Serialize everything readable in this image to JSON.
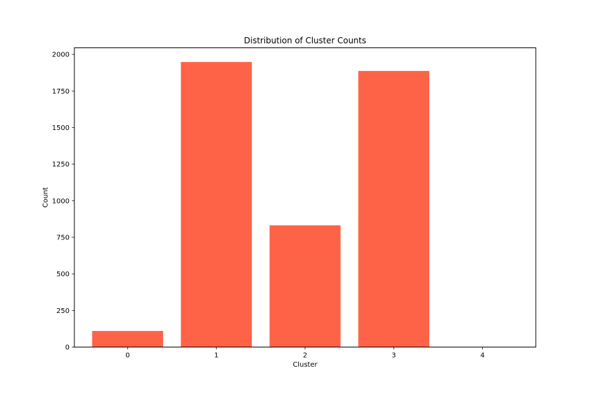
{
  "chart_data": {
    "type": "bar",
    "title": "Distribution of Cluster Counts",
    "xlabel": "Cluster",
    "ylabel": "Count",
    "categories": [
      "0",
      "1",
      "2",
      "3",
      "4"
    ],
    "values": [
      110,
      1948,
      832,
      1887,
      0
    ],
    "ylim": [
      0,
      2045
    ],
    "yticks": [
      0,
      250,
      500,
      750,
      1000,
      1250,
      1500,
      1750,
      2000
    ],
    "grid": false,
    "legend": "none",
    "bar_color": "#ff6347"
  }
}
